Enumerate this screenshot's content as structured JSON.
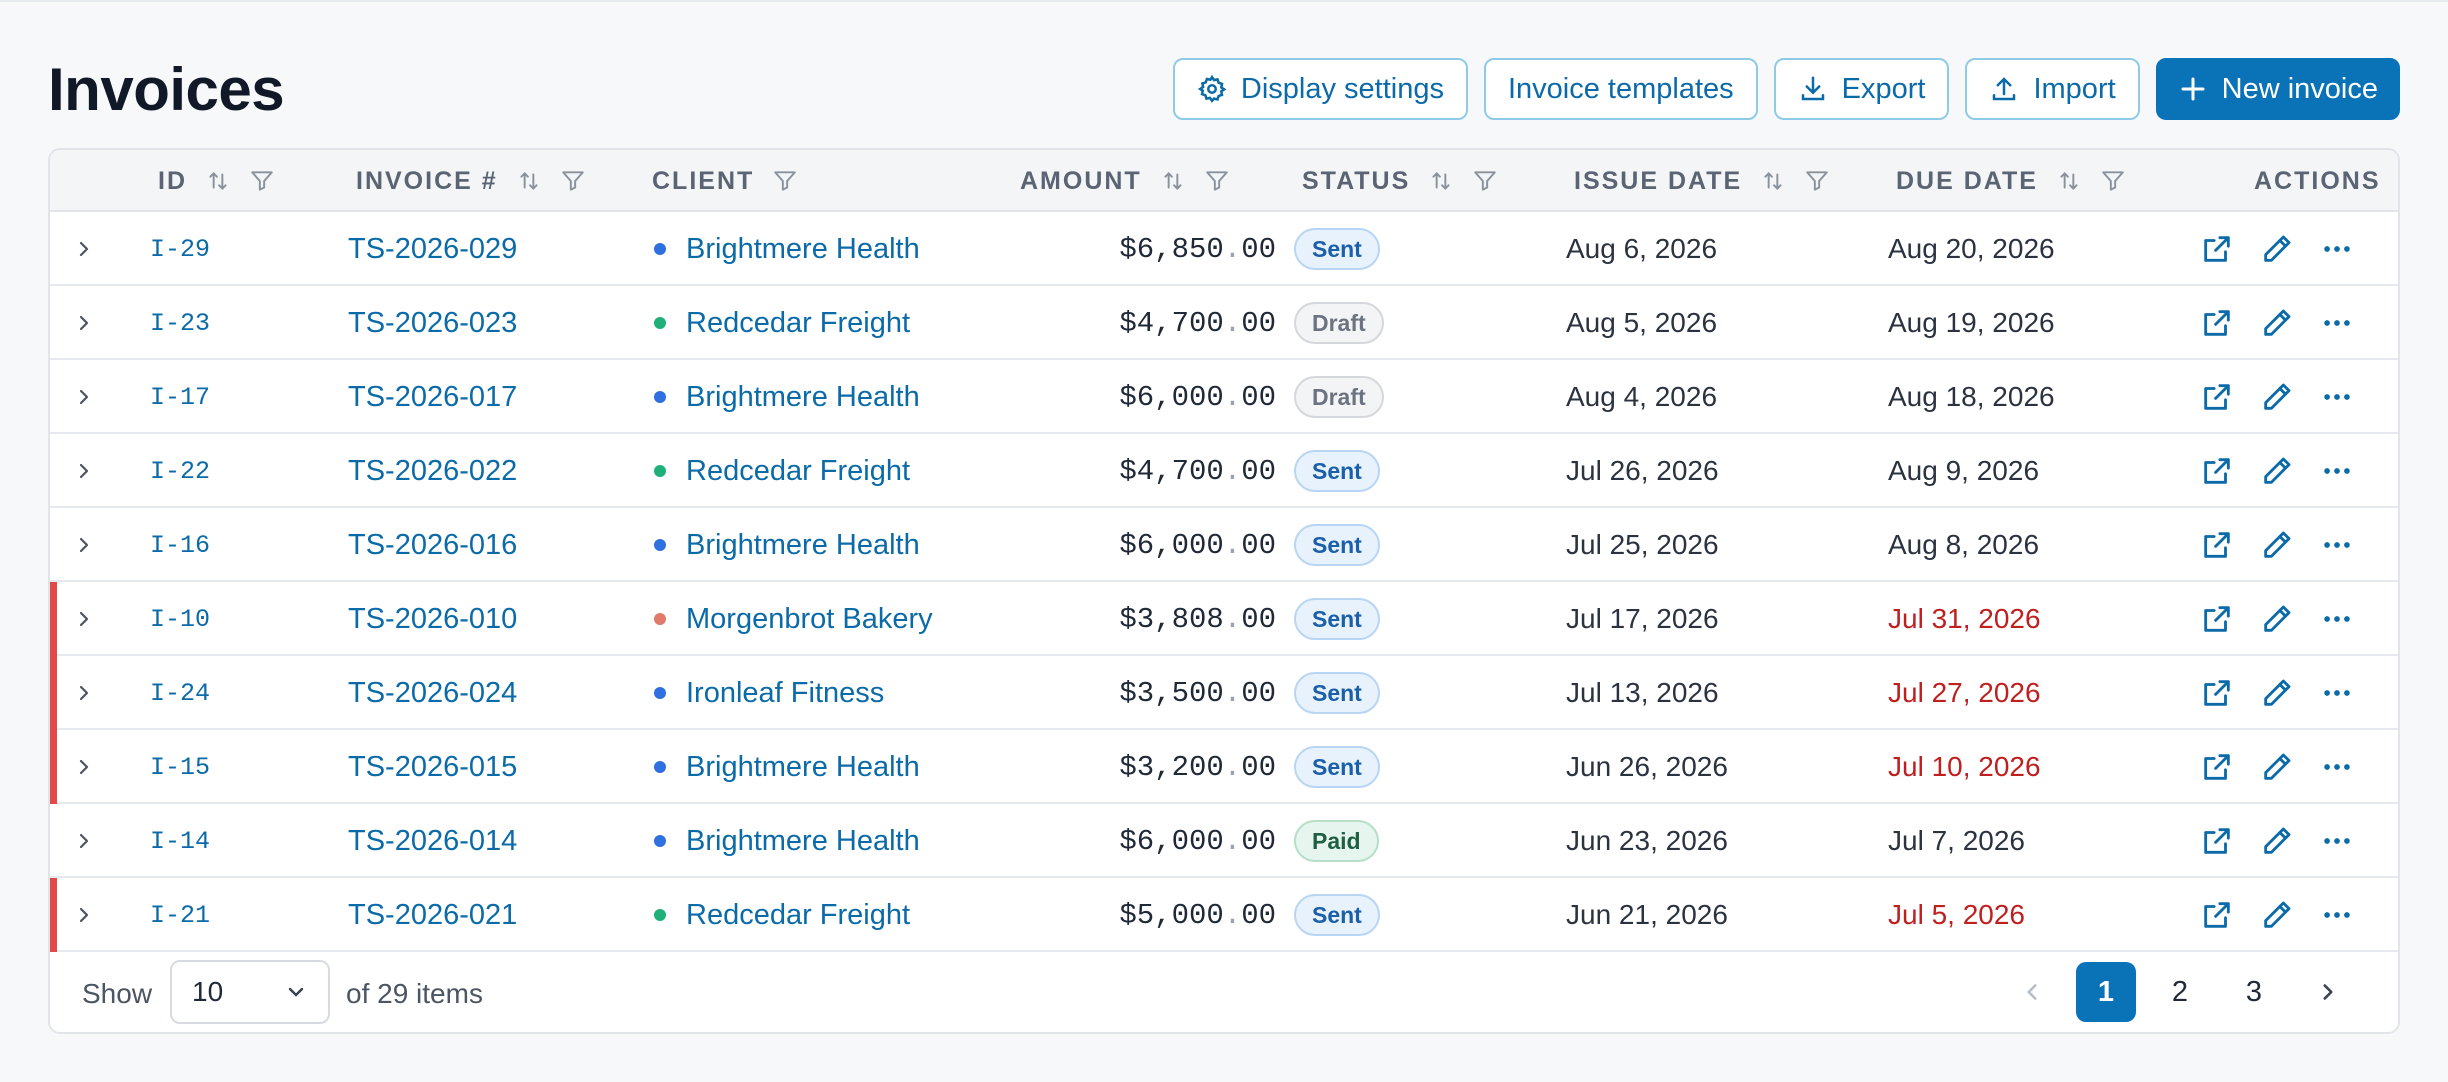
{
  "page": {
    "title": "Invoices"
  },
  "toolbar": {
    "display_settings": "Display settings",
    "invoice_templates": "Invoice templates",
    "export": "Export",
    "import": "Import",
    "new_invoice": "New invoice"
  },
  "table": {
    "columns": {
      "id": "ID",
      "invoice_no": "INVOICE #",
      "client": "CLIENT",
      "amount": "AMOUNT",
      "status": "STATUS",
      "issue_date": "ISSUE DATE",
      "due_date": "DUE DATE",
      "actions": "ACTIONS"
    },
    "rows": [
      {
        "id": "I-29",
        "invoice": "TS-2026-029",
        "client": "Brightmere Health",
        "client_color": "#2f6fe0",
        "amount_int": "$6,850",
        "amount_sep": ".",
        "amount_dec": "00",
        "status": "Sent",
        "issue": "Aug 6, 2026",
        "due": "Aug 20, 2026",
        "overdue": false
      },
      {
        "id": "I-23",
        "invoice": "TS-2026-023",
        "client": "Redcedar Freight",
        "client_color": "#1fb07a",
        "amount_int": "$4,700",
        "amount_sep": ".",
        "amount_dec": "00",
        "status": "Draft",
        "issue": "Aug 5, 2026",
        "due": "Aug 19, 2026",
        "overdue": false
      },
      {
        "id": "I-17",
        "invoice": "TS-2026-017",
        "client": "Brightmere Health",
        "client_color": "#2f6fe0",
        "amount_int": "$6,000",
        "amount_sep": ".",
        "amount_dec": "00",
        "status": "Draft",
        "issue": "Aug 4, 2026",
        "due": "Aug 18, 2026",
        "overdue": false
      },
      {
        "id": "I-22",
        "invoice": "TS-2026-022",
        "client": "Redcedar Freight",
        "client_color": "#1fb07a",
        "amount_int": "$4,700",
        "amount_sep": ".",
        "amount_dec": "00",
        "status": "Sent",
        "issue": "Jul 26, 2026",
        "due": "Aug 9, 2026",
        "overdue": false
      },
      {
        "id": "I-16",
        "invoice": "TS-2026-016",
        "client": "Brightmere Health",
        "client_color": "#2f6fe0",
        "amount_int": "$6,000",
        "amount_sep": ".",
        "amount_dec": "00",
        "status": "Sent",
        "issue": "Jul 25, 2026",
        "due": "Aug 8, 2026",
        "overdue": false
      },
      {
        "id": "I-10",
        "invoice": "TS-2026-010",
        "client": "Morgenbrot Bakery",
        "client_color": "#e07a6a",
        "amount_int": "$3,808",
        "amount_sep": ".",
        "amount_dec": "00",
        "status": "Sent",
        "issue": "Jul 17, 2026",
        "due": "Jul 31, 2026",
        "overdue": true
      },
      {
        "id": "I-24",
        "invoice": "TS-2026-024",
        "client": "Ironleaf Fitness",
        "client_color": "#2f6fe0",
        "amount_int": "$3,500",
        "amount_sep": ".",
        "amount_dec": "00",
        "status": "Sent",
        "issue": "Jul 13, 2026",
        "due": "Jul 27, 2026",
        "overdue": true
      },
      {
        "id": "I-15",
        "invoice": "TS-2026-015",
        "client": "Brightmere Health",
        "client_color": "#2f6fe0",
        "amount_int": "$3,200",
        "amount_sep": ".",
        "amount_dec": "00",
        "status": "Sent",
        "issue": "Jun 26, 2026",
        "due": "Jul 10, 2026",
        "overdue": true
      },
      {
        "id": "I-14",
        "invoice": "TS-2026-014",
        "client": "Brightmere Health",
        "client_color": "#2f6fe0",
        "amount_int": "$6,000",
        "amount_sep": ".",
        "amount_dec": "00",
        "status": "Paid",
        "issue": "Jun 23, 2026",
        "due": "Jul 7, 2026",
        "overdue": false
      },
      {
        "id": "I-21",
        "invoice": "TS-2026-021",
        "client": "Redcedar Freight",
        "client_color": "#1fb07a",
        "amount_int": "$5,000",
        "amount_sep": ".",
        "amount_dec": "00",
        "status": "Sent",
        "issue": "Jun 21, 2026",
        "due": "Jul 5, 2026",
        "overdue": true
      }
    ]
  },
  "footer": {
    "show_label": "Show",
    "page_size": "10",
    "count_text": "of 29 items",
    "pages": [
      "1",
      "2",
      "3"
    ],
    "current_page": "1"
  },
  "colors": {
    "accent": "#0a73b8",
    "overdue_flag": "#e24a4a",
    "overdue_text": "#c01f1f"
  }
}
